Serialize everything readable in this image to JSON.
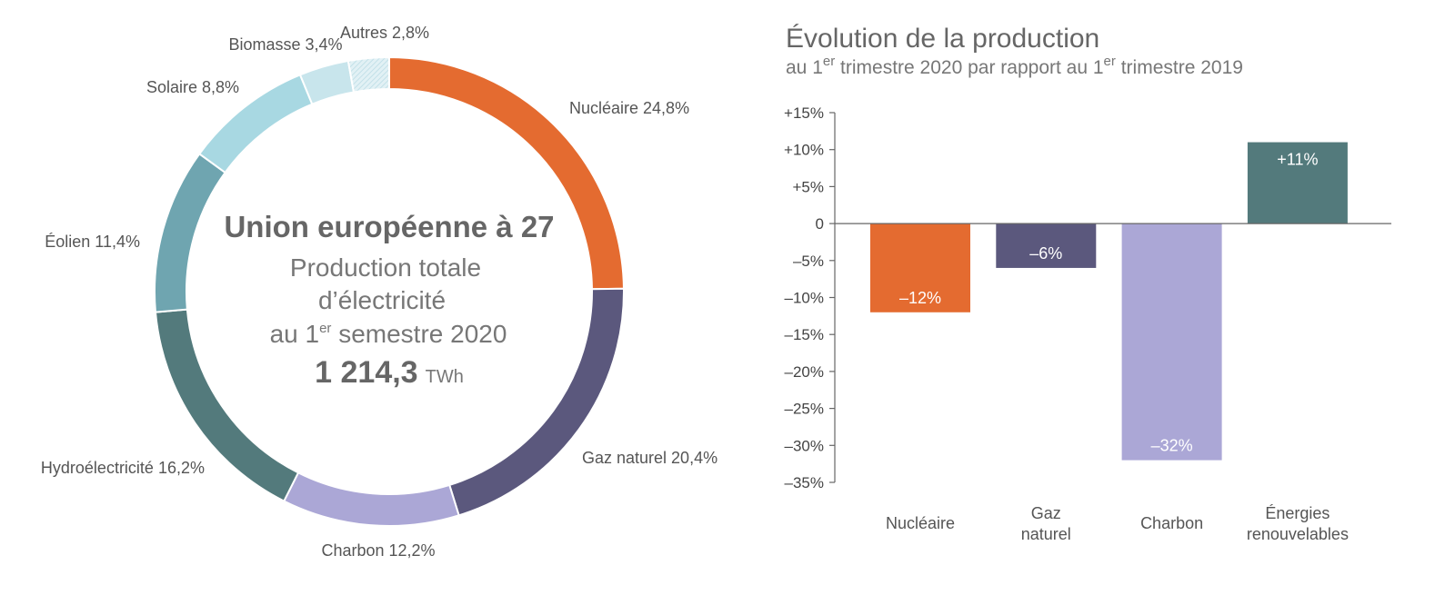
{
  "colors": {
    "nucleaire": "#e46b30",
    "gaz": "#5b587d",
    "charbon": "#aba7d6",
    "hydro": "#537a7c",
    "eolien": "#6fa5b0",
    "solaire": "#a8d8e2",
    "biomasse": "#c8e5ec",
    "autres": "#e2f1f5",
    "renouvelables": "#537a7c",
    "axis": "#666666"
  },
  "chart_data": [
    {
      "type": "pie",
      "center": {
        "title": "Union européenne à 27",
        "line1": "Production totale",
        "line2": "d’électricité",
        "line3_pre": "au 1",
        "line3_sup": "er",
        "line3_post": " semestre 2020",
        "total": "1 214,3",
        "unit": "TWh"
      },
      "slices": [
        {
          "name": "Nucléaire",
          "value": 24.8,
          "label": "Nucléaire 24,8%",
          "color_key": "nucleaire"
        },
        {
          "name": "Gaz naturel",
          "value": 20.4,
          "label": "Gaz naturel 20,4%",
          "color_key": "gaz"
        },
        {
          "name": "Charbon",
          "value": 12.2,
          "label": "Charbon 12,2%",
          "color_key": "charbon"
        },
        {
          "name": "Hydroélectricité",
          "value": 16.2,
          "label": "Hydroélectricité 16,2%",
          "color_key": "hydro"
        },
        {
          "name": "Éolien",
          "value": 11.4,
          "label": "Éolien 11,4%",
          "color_key": "eolien"
        },
        {
          "name": "Solaire",
          "value": 8.8,
          "label": "Solaire 8,8%",
          "color_key": "solaire"
        },
        {
          "name": "Biomasse",
          "value": 3.4,
          "label": "Biomasse 3,4%",
          "color_key": "biomasse"
        },
        {
          "name": "Autres",
          "value": 2.8,
          "label": "Autres 2,8%",
          "color_key": "autres"
        }
      ]
    },
    {
      "type": "bar",
      "title": "Évolution de la production",
      "subtitle": {
        "p1": "au 1",
        "s1": "er",
        "p2": " trimestre 2020 par rapport au 1",
        "s2": "er",
        "p3": " trimestre 2019"
      },
      "ylim": [
        -35,
        15
      ],
      "yticks": [
        {
          "v": 15,
          "label": "+15%"
        },
        {
          "v": 10,
          "label": "+10%"
        },
        {
          "v": 5,
          "label": "+5%"
        },
        {
          "v": 0,
          "label": "0"
        },
        {
          "v": -5,
          "label": "–5%"
        },
        {
          "v": -10,
          "label": "–10%"
        },
        {
          "v": -15,
          "label": "–15%"
        },
        {
          "v": -20,
          "label": "–20%"
        },
        {
          "v": -25,
          "label": "–25%"
        },
        {
          "v": -30,
          "label": "–30%"
        },
        {
          "v": -35,
          "label": "–35%"
        }
      ],
      "bars": [
        {
          "category": [
            "Nucléaire"
          ],
          "value": -12,
          "label": "–12%",
          "color_key": "nucleaire"
        },
        {
          "category": [
            "Gaz",
            "naturel"
          ],
          "value": -6,
          "label": "–6%",
          "color_key": "gaz"
        },
        {
          "category": [
            "Charbon"
          ],
          "value": -32,
          "label": "–32%",
          "color_key": "charbon"
        },
        {
          "category": [
            "Énergies",
            "renouvelables"
          ],
          "value": 11,
          "label": "+11%",
          "color_key": "renouvelables"
        }
      ]
    }
  ]
}
